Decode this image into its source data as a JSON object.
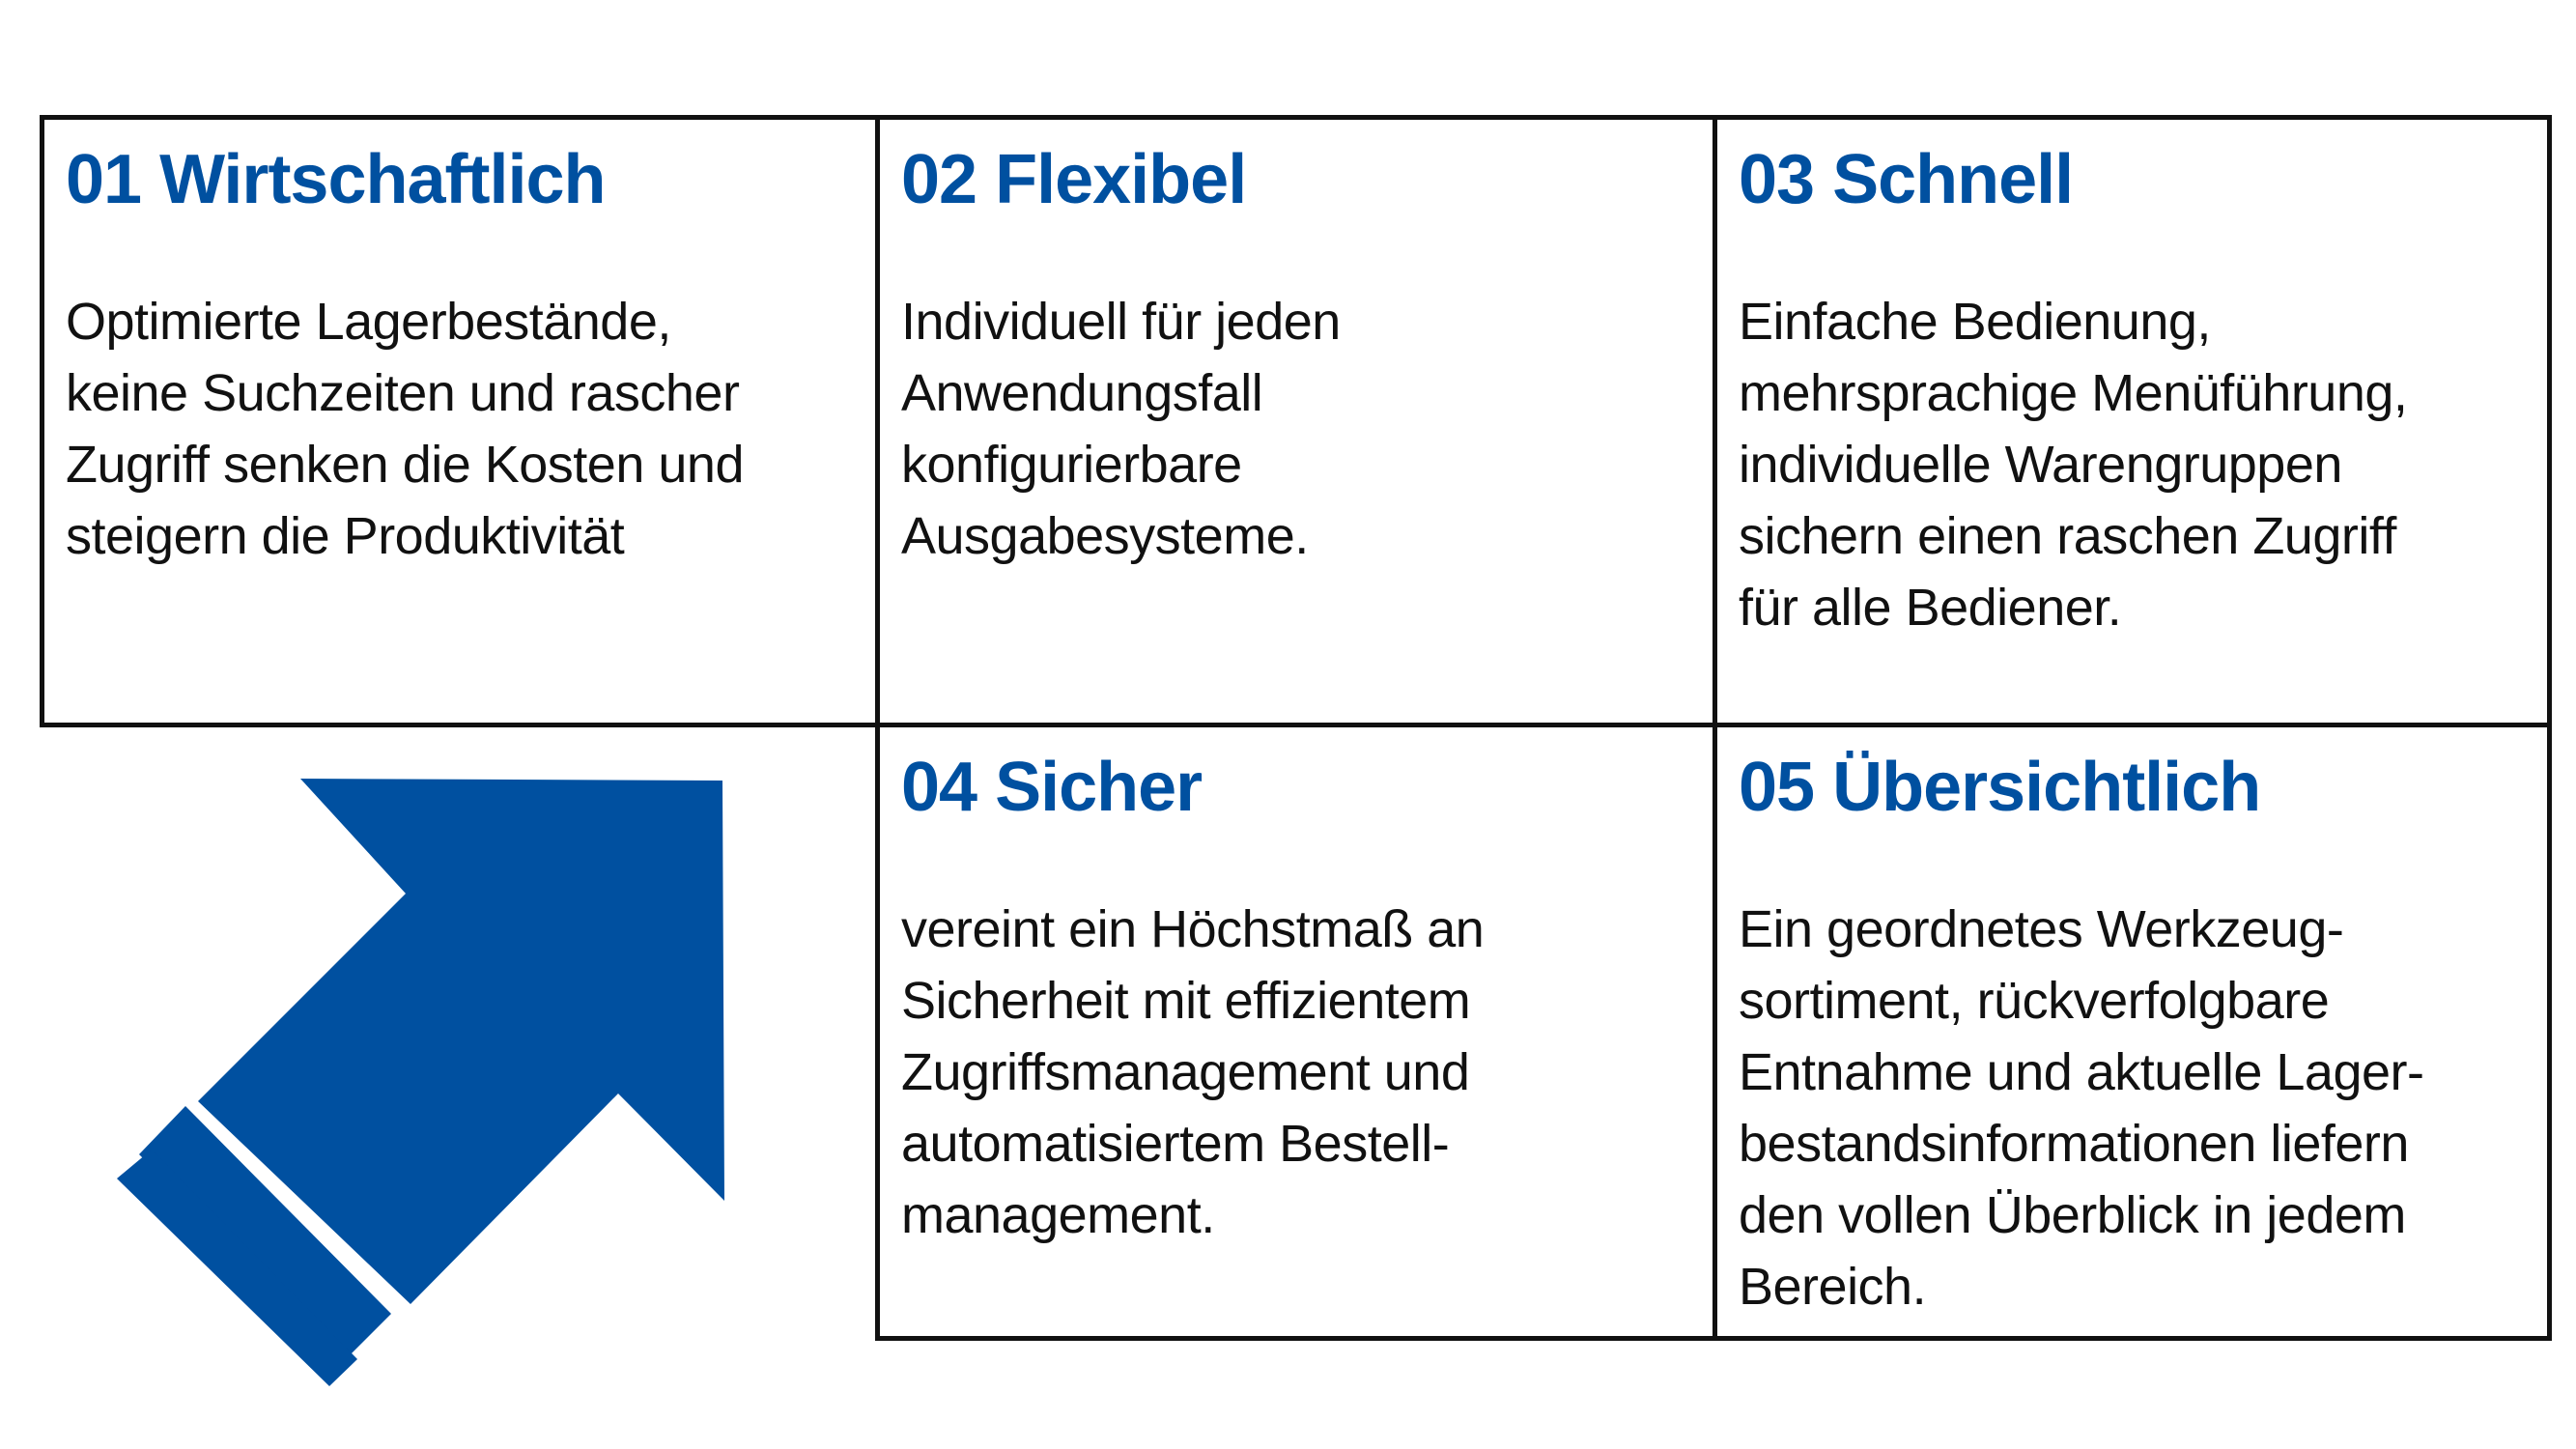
{
  "accent_color": "#0050a0",
  "arrow_icon": "arrow-up-right-icon",
  "cells": [
    {
      "title": "01 Wirtschaftlich",
      "text": "Optimierte Lagerbestände,\nkeine Suchzeiten und rascher\nZugriff senken die Kosten und\nsteigern die Produktivität"
    },
    {
      "title": "02 Flexibel",
      "text": "Individuell für jeden\nAnwendungsfall\nkonfigurierbare\nAusgabesysteme."
    },
    {
      "title": "03 Schnell",
      "text": "Einfache Bedienung,\nmehrsprachige Menüführung,\nindividuelle Warengruppen\nsichern einen raschen Zugriff\nfür alle Bediener."
    },
    {
      "title": "04 Sicher",
      "text": "vereint ein Höchstmaß an\nSicherheit mit effizientem\nZugriffsmanagement und\nautomatisiertem Bestell-\nmanagement."
    },
    {
      "title": "05 Übersichtlich",
      "text": "Ein geordnetes Werkzeug-\nsortiment, rückverfolgbare\nEntnahme und aktuelle Lager-\nbestandsinformationen liefern\nden vollen Überblick in jedem\nBereich."
    }
  ]
}
